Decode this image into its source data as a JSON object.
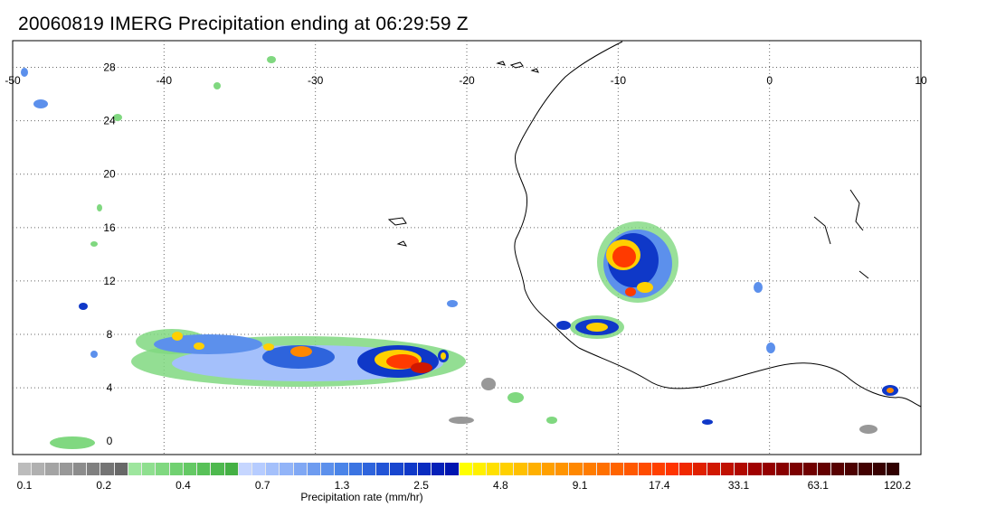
{
  "title": "20060819 IMERG Precipitation ending at 06:29:59 Z",
  "map": {
    "lon_range": [
      -50,
      10
    ],
    "lat_range": [
      -1,
      30
    ],
    "lon_ticks": [
      "-50",
      "-40",
      "-30",
      "-20",
      "-10",
      "0",
      "10"
    ],
    "lat_ticks": [
      "0",
      "4",
      "8",
      "12",
      "16",
      "20",
      "24",
      "28"
    ],
    "grid": "dotted"
  },
  "legend": {
    "label": "Precipitation rate (mm/hr)",
    "tick_labels": [
      "0.1",
      "0.2",
      "0.4",
      "0.7",
      "1.3",
      "2.5",
      "4.8",
      "9.1",
      "17.4",
      "33.1",
      "63.1",
      "120.2"
    ],
    "colors": [
      "#bcbcbc",
      "#b0b0b0",
      "#a4a4a4",
      "#989898",
      "#8c8c8c",
      "#808080",
      "#747474",
      "#686868",
      "#9ee69e",
      "#8fdf8f",
      "#80d880",
      "#71d171",
      "#64c964",
      "#58c158",
      "#4eb94e",
      "#44b044",
      "#c6d6ff",
      "#b6ccff",
      "#a4c0fb",
      "#92b4f8",
      "#80a8f4",
      "#6e9cf0",
      "#5c90ec",
      "#4a84e8",
      "#3b74e2",
      "#2e64dc",
      "#2254d6",
      "#1846cf",
      "#0f38c8",
      "#0a2cc0",
      "#0520b8",
      "#0015b0",
      "#ffff00",
      "#fff000",
      "#ffe000",
      "#ffd000",
      "#ffc000",
      "#ffb000",
      "#ffa000",
      "#ff9400",
      "#ff8800",
      "#ff7c00",
      "#ff7000",
      "#ff6400",
      "#ff5800",
      "#ff4c00",
      "#ff4000",
      "#ff3400",
      "#f02800",
      "#e02000",
      "#d01800",
      "#c01000",
      "#b00800",
      "#a00000",
      "#940000",
      "#880000",
      "#7c0000",
      "#700000",
      "#640000",
      "#580000",
      "#4c0000",
      "#420000",
      "#380000",
      "#300000"
    ]
  },
  "colors": {
    "light": "#80d880",
    "moderate": "#2e64dc",
    "heavy": "#ffd000",
    "intense": "#ff3a00",
    "coast": "#000000"
  }
}
